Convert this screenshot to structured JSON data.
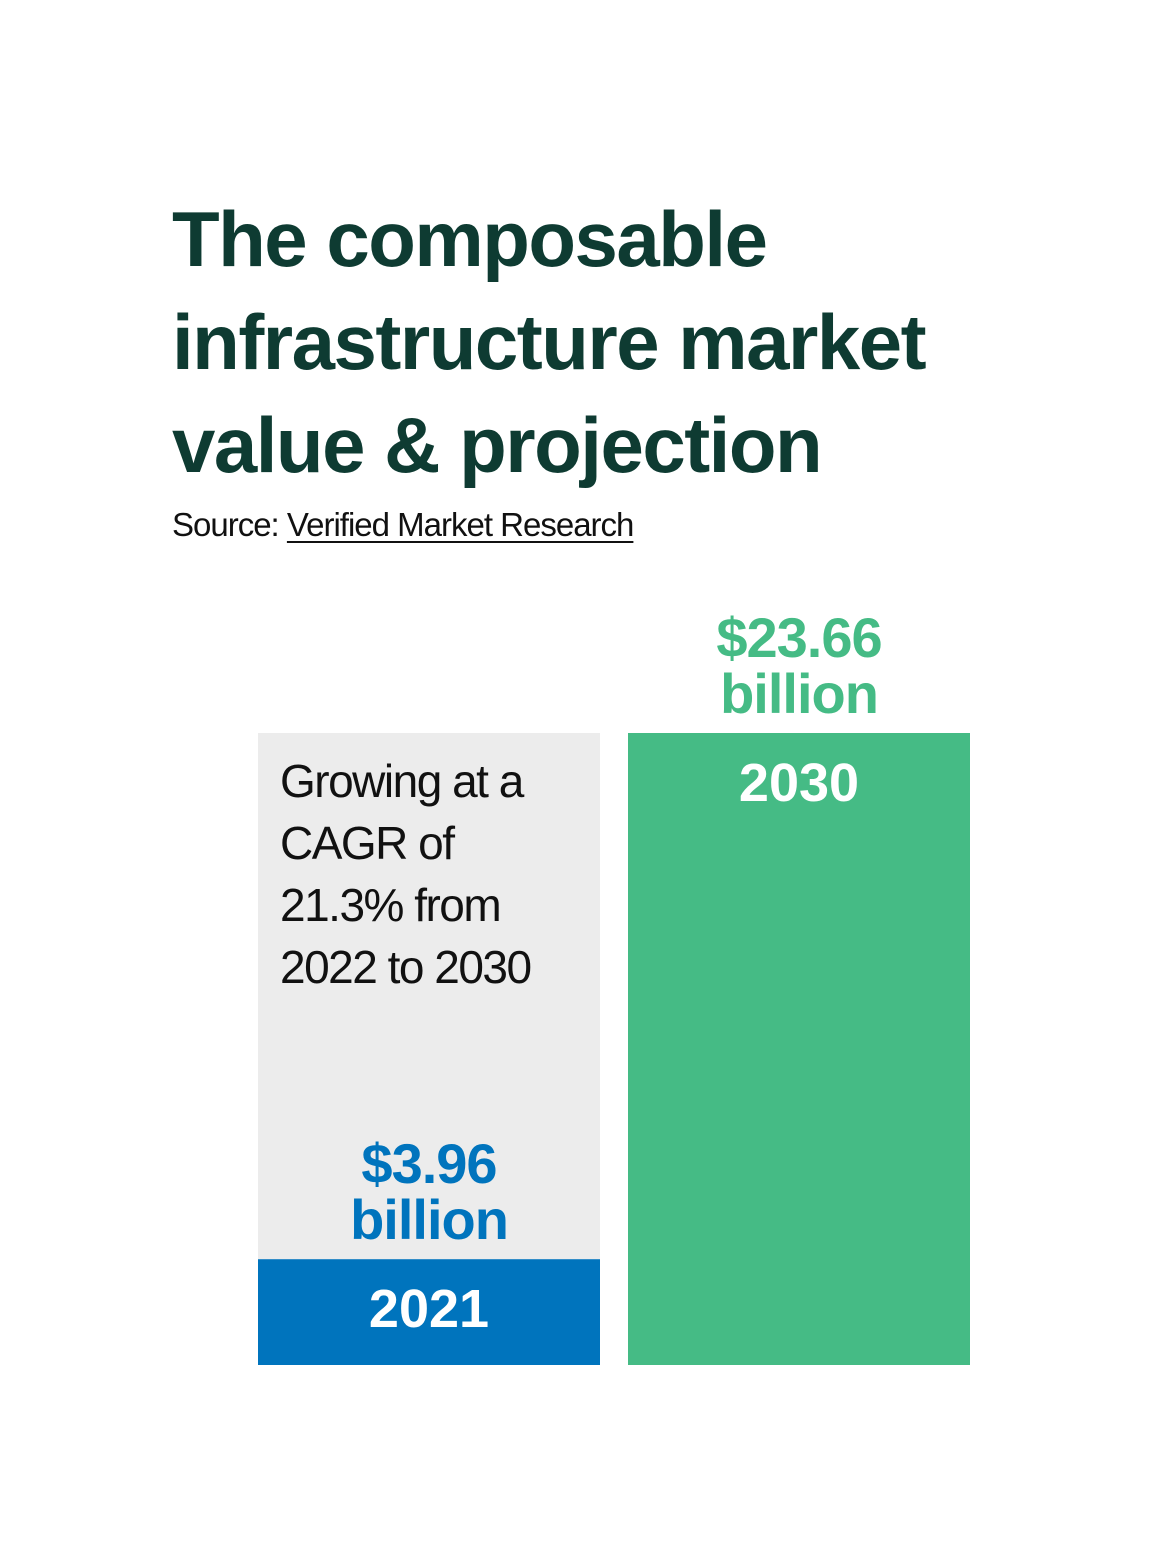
{
  "title_lines": [
    "The composable",
    "infrastructure market",
    "value & projection"
  ],
  "source": {
    "label": "Source:",
    "link_text": "Verified Market Research"
  },
  "note_lines": [
    "Growing at a",
    "CAGR of",
    "21.3% from",
    "2022 to 2030"
  ],
  "chart_data": {
    "type": "bar",
    "title": "The composable infrastructure market value & projection",
    "categories": [
      "2021",
      "2030"
    ],
    "values": [
      3.96,
      23.66
    ],
    "value_labels": [
      [
        "$3.96",
        "billion"
      ],
      [
        "$23.66",
        "billion"
      ]
    ],
    "colors": [
      "#0074bd",
      "#45bb85"
    ],
    "background_panel_color": "#ececec",
    "grid": false,
    "legend": "none"
  }
}
